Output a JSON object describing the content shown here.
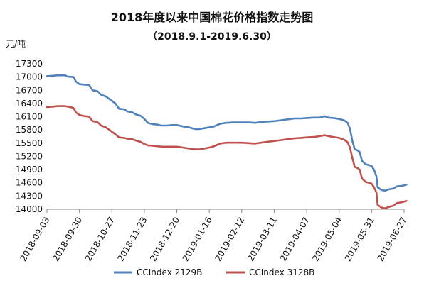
{
  "chart_data": {
    "type": "line",
    "title": "2018年度以来中国棉花价格指数走势图",
    "subtitle": "（2018.9.1-2019.6.30）",
    "ylabel": "元/吨",
    "xlabel": "",
    "ylim": [
      14000,
      17300
    ],
    "yticks": [
      "17300",
      "17000",
      "16700",
      "16400",
      "16100",
      "15800",
      "15500",
      "15200",
      "14900",
      "14600",
      "14300",
      "14000"
    ],
    "xticks": [
      "2018-09-03",
      "2018-09-30",
      "2018-10-27",
      "2018-11-23",
      "2018-12-20",
      "2019-01-16",
      "2019-02-12",
      "2019-03-11",
      "2019-04-07",
      "2019-05-04",
      "2019-05-31",
      "2019-06-27"
    ],
    "grid": false,
    "legend": "bottom",
    "series": [
      {
        "name": "CCIndex 2129B",
        "color": "#4f81bd",
        "points": [
          [
            "2018-09-03",
            17020
          ],
          [
            "2018-09-08",
            17030
          ],
          [
            "2018-09-12",
            17040
          ],
          [
            "2018-09-18",
            17040
          ],
          [
            "2018-09-20",
            17010
          ],
          [
            "2018-09-25",
            17000
          ],
          [
            "2018-09-27",
            16900
          ],
          [
            "2018-09-30",
            16840
          ],
          [
            "2018-10-03",
            16830
          ],
          [
            "2018-10-08",
            16820
          ],
          [
            "2018-10-11",
            16700
          ],
          [
            "2018-10-15",
            16680
          ],
          [
            "2018-10-18",
            16600
          ],
          [
            "2018-10-22",
            16560
          ],
          [
            "2018-10-27",
            16460
          ],
          [
            "2018-10-30",
            16400
          ],
          [
            "2018-11-02",
            16280
          ],
          [
            "2018-11-06",
            16270
          ],
          [
            "2018-11-09",
            16220
          ],
          [
            "2018-11-13",
            16200
          ],
          [
            "2018-11-16",
            16150
          ],
          [
            "2018-11-20",
            16120
          ],
          [
            "2018-11-23",
            16050
          ],
          [
            "2018-11-26",
            15960
          ],
          [
            "2018-11-30",
            15930
          ],
          [
            "2018-12-04",
            15920
          ],
          [
            "2018-12-07",
            15900
          ],
          [
            "2018-12-12",
            15900
          ],
          [
            "2018-12-16",
            15910
          ],
          [
            "2018-12-20",
            15910
          ],
          [
            "2018-12-25",
            15880
          ],
          [
            "2018-12-30",
            15860
          ],
          [
            "2019-01-04",
            15820
          ],
          [
            "2019-01-08",
            15820
          ],
          [
            "2019-01-12",
            15840
          ],
          [
            "2019-01-16",
            15860
          ],
          [
            "2019-01-20",
            15880
          ],
          [
            "2019-01-25",
            15940
          ],
          [
            "2019-01-30",
            15960
          ],
          [
            "2019-02-05",
            15970
          ],
          [
            "2019-02-12",
            15970
          ],
          [
            "2019-02-18",
            15970
          ],
          [
            "2019-02-23",
            15960
          ],
          [
            "2019-02-28",
            15980
          ],
          [
            "2019-03-05",
            15990
          ],
          [
            "2019-03-11",
            16000
          ],
          [
            "2019-03-17",
            16020
          ],
          [
            "2019-03-22",
            16040
          ],
          [
            "2019-03-28",
            16060
          ],
          [
            "2019-04-02",
            16060
          ],
          [
            "2019-04-07",
            16070
          ],
          [
            "2019-04-13",
            16080
          ],
          [
            "2019-04-18",
            16080
          ],
          [
            "2019-04-22",
            16110
          ],
          [
            "2019-04-25",
            16080
          ],
          [
            "2019-04-29",
            16070
          ],
          [
            "2019-05-04",
            16050
          ],
          [
            "2019-05-08",
            16020
          ],
          [
            "2019-05-11",
            15960
          ],
          [
            "2019-05-13",
            15830
          ],
          [
            "2019-05-15",
            15550
          ],
          [
            "2019-05-17",
            15360
          ],
          [
            "2019-05-19",
            15340
          ],
          [
            "2019-05-21",
            15300
          ],
          [
            "2019-05-23",
            15100
          ],
          [
            "2019-05-26",
            15020
          ],
          [
            "2019-05-29",
            15000
          ],
          [
            "2019-05-31",
            14980
          ],
          [
            "2019-06-02",
            14900
          ],
          [
            "2019-06-04",
            14750
          ],
          [
            "2019-06-05",
            14500
          ],
          [
            "2019-06-08",
            14440
          ],
          [
            "2019-06-11",
            14420
          ],
          [
            "2019-06-14",
            14450
          ],
          [
            "2019-06-18",
            14470
          ],
          [
            "2019-06-21",
            14520
          ],
          [
            "2019-06-25",
            14530
          ],
          [
            "2019-06-29",
            14560
          ]
        ]
      },
      {
        "name": "CCIndex 3128B",
        "color": "#c0504d",
        "points": [
          [
            "2018-09-03",
            16320
          ],
          [
            "2018-09-08",
            16330
          ],
          [
            "2018-09-12",
            16340
          ],
          [
            "2018-09-18",
            16340
          ],
          [
            "2018-09-22",
            16320
          ],
          [
            "2018-09-25",
            16300
          ],
          [
            "2018-09-27",
            16200
          ],
          [
            "2018-09-30",
            16140
          ],
          [
            "2018-10-03",
            16120
          ],
          [
            "2018-10-08",
            16100
          ],
          [
            "2018-10-11",
            16000
          ],
          [
            "2018-10-15",
            15980
          ],
          [
            "2018-10-18",
            15900
          ],
          [
            "2018-10-22",
            15860
          ],
          [
            "2018-10-27",
            15760
          ],
          [
            "2018-10-30",
            15700
          ],
          [
            "2018-11-02",
            15630
          ],
          [
            "2018-11-06",
            15620
          ],
          [
            "2018-11-09",
            15600
          ],
          [
            "2018-11-13",
            15590
          ],
          [
            "2018-11-16",
            15560
          ],
          [
            "2018-11-20",
            15530
          ],
          [
            "2018-11-23",
            15480
          ],
          [
            "2018-11-26",
            15450
          ],
          [
            "2018-11-30",
            15440
          ],
          [
            "2018-12-04",
            15430
          ],
          [
            "2018-12-08",
            15420
          ],
          [
            "2018-12-12",
            15420
          ],
          [
            "2018-12-16",
            15420
          ],
          [
            "2018-12-20",
            15420
          ],
          [
            "2018-12-25",
            15400
          ],
          [
            "2018-12-30",
            15380
          ],
          [
            "2019-01-04",
            15360
          ],
          [
            "2019-01-08",
            15360
          ],
          [
            "2019-01-12",
            15380
          ],
          [
            "2019-01-16",
            15400
          ],
          [
            "2019-01-20",
            15430
          ],
          [
            "2019-01-25",
            15490
          ],
          [
            "2019-01-30",
            15510
          ],
          [
            "2019-02-05",
            15510
          ],
          [
            "2019-02-12",
            15510
          ],
          [
            "2019-02-18",
            15500
          ],
          [
            "2019-02-23",
            15490
          ],
          [
            "2019-02-28",
            15510
          ],
          [
            "2019-03-05",
            15530
          ],
          [
            "2019-03-11",
            15550
          ],
          [
            "2019-03-17",
            15570
          ],
          [
            "2019-03-22",
            15590
          ],
          [
            "2019-03-28",
            15610
          ],
          [
            "2019-04-02",
            15620
          ],
          [
            "2019-04-07",
            15630
          ],
          [
            "2019-04-13",
            15640
          ],
          [
            "2019-04-18",
            15660
          ],
          [
            "2019-04-22",
            15680
          ],
          [
            "2019-04-25",
            15660
          ],
          [
            "2019-04-29",
            15640
          ],
          [
            "2019-05-04",
            15620
          ],
          [
            "2019-05-08",
            15580
          ],
          [
            "2019-05-11",
            15520
          ],
          [
            "2019-05-13",
            15400
          ],
          [
            "2019-05-15",
            15160
          ],
          [
            "2019-05-17",
            14960
          ],
          [
            "2019-05-19",
            14940
          ],
          [
            "2019-05-21",
            14900
          ],
          [
            "2019-05-23",
            14700
          ],
          [
            "2019-05-26",
            14620
          ],
          [
            "2019-05-29",
            14600
          ],
          [
            "2019-05-31",
            14580
          ],
          [
            "2019-06-02",
            14500
          ],
          [
            "2019-06-04",
            14380
          ],
          [
            "2019-06-05",
            14100
          ],
          [
            "2019-06-08",
            14040
          ],
          [
            "2019-06-11",
            14020
          ],
          [
            "2019-06-14",
            14050
          ],
          [
            "2019-06-18",
            14080
          ],
          [
            "2019-06-21",
            14140
          ],
          [
            "2019-06-25",
            14160
          ],
          [
            "2019-06-29",
            14190
          ]
        ]
      }
    ]
  }
}
